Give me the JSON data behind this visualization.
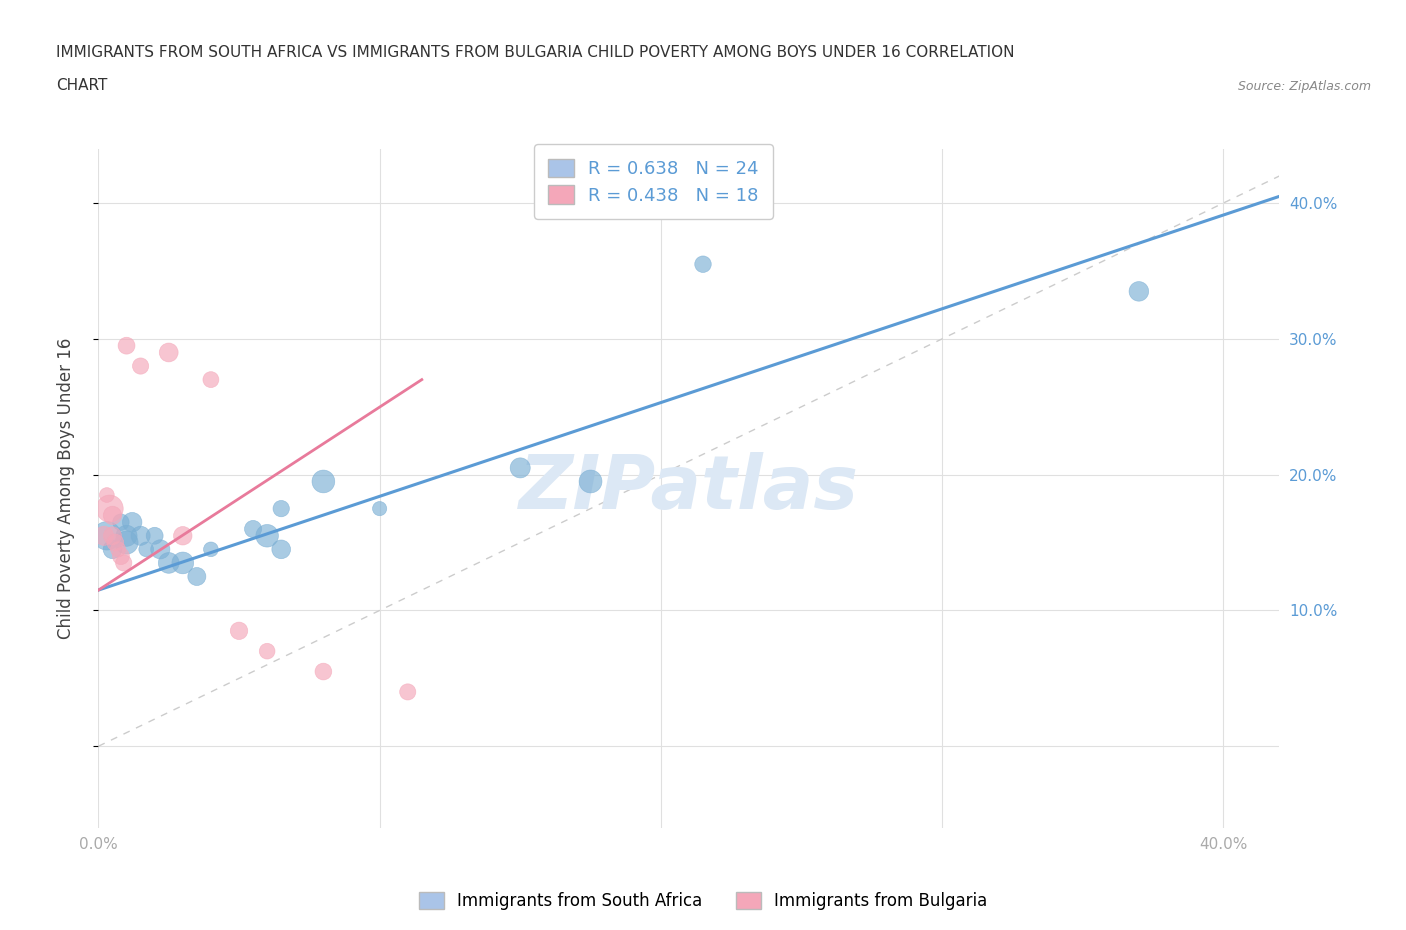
{
  "title_line1": "IMMIGRANTS FROM SOUTH AFRICA VS IMMIGRANTS FROM BULGARIA CHILD POVERTY AMONG BOYS UNDER 16 CORRELATION",
  "title_line2": "CHART",
  "source_text": "Source: ZipAtlas.com",
  "ylabel": "Child Poverty Among Boys Under 16",
  "watermark": "ZIPatlas",
  "xlim": [
    0.0,
    0.42
  ],
  "ylim": [
    -0.06,
    0.44
  ],
  "xticks": [
    0.0,
    0.1,
    0.2,
    0.3,
    0.4
  ],
  "xticklabels": [
    "0.0%",
    "",
    "",
    "",
    "40.0%"
  ],
  "yticks_right": [
    0.1,
    0.2,
    0.3,
    0.4
  ],
  "yticklabels_right": [
    "10.0%",
    "20.0%",
    "30.0%",
    "40.0%"
  ],
  "legend_entries": [
    {
      "label": "R = 0.638   N = 24",
      "color": "#aac4e8"
    },
    {
      "label": "R = 0.438   N = 18",
      "color": "#f4a7b9"
    }
  ],
  "bottom_legend": [
    {
      "label": "Immigrants from South Africa",
      "color": "#aac4e8"
    },
    {
      "label": "Immigrants from Bulgaria",
      "color": "#f4a7b9"
    }
  ],
  "blue_scatter": [
    [
      0.003,
      0.155
    ],
    [
      0.005,
      0.145
    ],
    [
      0.008,
      0.165
    ],
    [
      0.01,
      0.155
    ],
    [
      0.01,
      0.15
    ],
    [
      0.012,
      0.165
    ],
    [
      0.015,
      0.155
    ],
    [
      0.017,
      0.145
    ],
    [
      0.02,
      0.155
    ],
    [
      0.022,
      0.145
    ],
    [
      0.025,
      0.135
    ],
    [
      0.03,
      0.135
    ],
    [
      0.035,
      0.125
    ],
    [
      0.04,
      0.145
    ],
    [
      0.055,
      0.16
    ],
    [
      0.06,
      0.155
    ],
    [
      0.065,
      0.175
    ],
    [
      0.065,
      0.145
    ],
    [
      0.08,
      0.195
    ],
    [
      0.1,
      0.175
    ],
    [
      0.15,
      0.205
    ],
    [
      0.175,
      0.195
    ],
    [
      0.215,
      0.355
    ],
    [
      0.37,
      0.335
    ]
  ],
  "pink_scatter": [
    [
      0.002,
      0.155
    ],
    [
      0.003,
      0.185
    ],
    [
      0.004,
      0.175
    ],
    [
      0.005,
      0.17
    ],
    [
      0.005,
      0.155
    ],
    [
      0.006,
      0.15
    ],
    [
      0.007,
      0.145
    ],
    [
      0.008,
      0.14
    ],
    [
      0.009,
      0.135
    ],
    [
      0.01,
      0.295
    ],
    [
      0.015,
      0.28
    ],
    [
      0.025,
      0.29
    ],
    [
      0.03,
      0.155
    ],
    [
      0.04,
      0.27
    ],
    [
      0.05,
      0.085
    ],
    [
      0.06,
      0.07
    ],
    [
      0.08,
      0.055
    ],
    [
      0.11,
      0.04
    ]
  ],
  "blue_line": [
    [
      0.0,
      0.115
    ],
    [
      0.42,
      0.405
    ]
  ],
  "pink_line": [
    [
      0.0,
      0.115
    ],
    [
      0.115,
      0.27
    ]
  ],
  "blue_color": "#7bafd4",
  "pink_color": "#f4a7b9",
  "bg_color": "#ffffff",
  "grid_color": "#e0e0e0",
  "title_color": "#333333",
  "axis_label_color": "#444444",
  "tick_color": "#aaaaaa",
  "right_tick_color": "#5b9bd5",
  "watermark_color": "#dce8f5",
  "trend_blue_color": "#5b9bd5",
  "trend_pink_color": "#e87a9b"
}
